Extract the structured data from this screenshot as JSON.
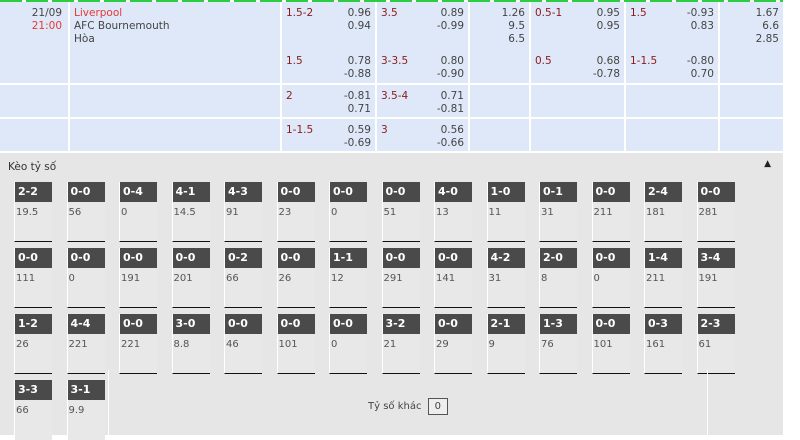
{
  "match": {
    "date": "21/09",
    "time": "21:00",
    "home": "Liverpool",
    "away": "AFC Bournemouth",
    "draw": "Hòa"
  },
  "rows": [
    {
      "hdp": {
        "line": "1.5-2",
        "vals": [
          "0.96",
          "0.94"
        ]
      },
      "ou": {
        "line": "3.5",
        "vals": [
          "0.89",
          "-0.99"
        ]
      },
      "x12": [
        "1.26",
        "9.5",
        "6.5"
      ],
      "hdp1h": {
        "line": "0.5-1",
        "vals": [
          "0.95",
          "0.95"
        ]
      },
      "ou1h": {
        "line": "1.5",
        "vals": [
          "-0.93",
          "0.83"
        ]
      },
      "x121h": [
        "1.67",
        "6.6",
        "2.85"
      ]
    },
    {
      "hdp": {
        "line": "1.5",
        "vals": [
          "0.78",
          "-0.88"
        ]
      },
      "ou": {
        "line": "3-3.5",
        "vals": [
          "0.80",
          "-0.90"
        ]
      },
      "x12": [],
      "hdp1h": {
        "line": "0.5",
        "vals": [
          "0.68",
          "-0.78"
        ]
      },
      "ou1h": {
        "line": "1-1.5",
        "vals": [
          "-0.80",
          "0.70"
        ]
      },
      "x121h": []
    },
    {
      "hdp": {
        "line": "2",
        "vals": [
          "-0.81",
          "0.71"
        ]
      },
      "ou": {
        "line": "3.5-4",
        "vals": [
          "0.71",
          "-0.81"
        ]
      },
      "x12": [],
      "hdp1h": null,
      "ou1h": null,
      "x121h": []
    },
    {
      "hdp": {
        "line": "1-1.5",
        "vals": [
          "0.59",
          "-0.69"
        ]
      },
      "ou": {
        "line": "3",
        "vals": [
          "0.56",
          "-0.66"
        ]
      },
      "x12": [],
      "hdp1h": null,
      "ou1h": null,
      "x121h": []
    }
  ],
  "score_section": {
    "title": "Kèo tỷ số",
    "collapse_icon": "caret-up-icon",
    "other_label": "Tỷ số khác",
    "other_value": "0"
  },
  "scores": [
    [
      "2-2",
      "19.5"
    ],
    [
      "0-0",
      "56"
    ],
    [
      "0-4",
      "0"
    ],
    [
      "4-1",
      "14.5"
    ],
    [
      "4-3",
      "91"
    ],
    [
      "0-0",
      "23"
    ],
    [
      "0-0",
      "0"
    ],
    [
      "0-0",
      "51"
    ],
    [
      "4-0",
      "13"
    ],
    [
      "1-0",
      "11"
    ],
    [
      "0-1",
      "31"
    ],
    [
      "0-0",
      "211"
    ],
    [
      "2-4",
      "181"
    ],
    [
      "0-0",
      "281"
    ],
    [
      "0-0",
      "111"
    ],
    [
      "0-0",
      "0"
    ],
    [
      "0-0",
      "191"
    ],
    [
      "0-0",
      "201"
    ],
    [
      "0-2",
      "66"
    ],
    [
      "0-0",
      "26"
    ],
    [
      "1-1",
      "12"
    ],
    [
      "0-0",
      "291"
    ],
    [
      "0-0",
      "141"
    ],
    [
      "4-2",
      "31"
    ],
    [
      "2-0",
      "8"
    ],
    [
      "0-0",
      "0"
    ],
    [
      "1-4",
      "211"
    ],
    [
      "3-4",
      "191"
    ],
    [
      "1-2",
      "26"
    ],
    [
      "4-4",
      "221"
    ],
    [
      "0-0",
      "221"
    ],
    [
      "3-0",
      "8.8"
    ],
    [
      "0-0",
      "46"
    ],
    [
      "0-0",
      "101"
    ],
    [
      "0-0",
      "0"
    ],
    [
      "3-2",
      "21"
    ],
    [
      "0-0",
      "29"
    ],
    [
      "2-1",
      "9"
    ],
    [
      "1-3",
      "76"
    ],
    [
      "0-0",
      "101"
    ],
    [
      "0-3",
      "161"
    ],
    [
      "2-3",
      "61"
    ],
    [
      "3-3",
      "66"
    ],
    [
      "3-1",
      "9.9"
    ]
  ]
}
